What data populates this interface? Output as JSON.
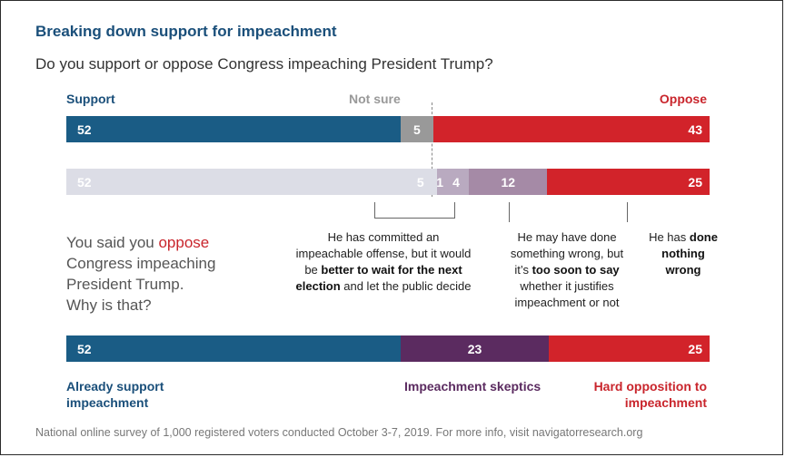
{
  "title": "Breaking down support for impeachment",
  "subtitle": "Do you support or oppose Congress impeaching President Trump?",
  "colors": {
    "support": "#1a5c85",
    "not_sure": "#999999",
    "oppose": "#d2232a",
    "faded": "#dcdde6",
    "mid1": "#b9aac0",
    "mid2": "#a58aa6",
    "skeptic": "#5b2b60"
  },
  "header_labels": {
    "support": "Support",
    "not_sure": "Not sure",
    "oppose": "Oppose"
  },
  "chart_data": [
    {
      "type": "bar",
      "orientation": "horizontal-stacked",
      "categories": [
        "Support",
        "Not sure",
        "Oppose"
      ],
      "values": [
        52,
        5,
        43
      ]
    },
    {
      "type": "bar",
      "orientation": "horizontal-stacked",
      "categories": [
        "Support",
        "Not sure",
        "Oppose: better to wait for the next election",
        "Oppose: better to wait for the next election",
        "Oppose: too soon to say",
        "Oppose: done nothing wrong"
      ],
      "values": [
        52,
        5,
        1,
        4,
        12,
        25
      ]
    },
    {
      "type": "bar",
      "orientation": "horizontal-stacked",
      "categories": [
        "Already support impeachment",
        "Impeachment skeptics",
        "Hard opposition to impeachment"
      ],
      "values": [
        52,
        23,
        25
      ]
    }
  ],
  "bar1_labels": [
    "52",
    "5",
    "43"
  ],
  "bar2_labels": [
    "52",
    "5",
    "1",
    "4",
    "12",
    "25"
  ],
  "bar3_labels": [
    "52",
    "23",
    "25"
  ],
  "prompt": {
    "line1_a": "You said you ",
    "line1_b": "oppose",
    "line2": "Congress impeaching",
    "line3": "President Trump.",
    "line4": "Why is that?"
  },
  "reasons": {
    "wait": {
      "a": "He has committed an",
      "b": "impeachable offense, but it would",
      "c": "be ",
      "d": "better to wait for the next",
      "e": "election",
      "f": " and let the public decide"
    },
    "soon": {
      "a": "He may have done",
      "b": "something wrong, but",
      "c": "it’s ",
      "d": "too soon to say",
      "e": "whether it justifies",
      "f": "impeachment or not"
    },
    "nothing": {
      "a": "He has ",
      "b": "done",
      "c": "nothing",
      "d": "wrong"
    }
  },
  "bottom_labels": {
    "support_1": "Already support",
    "support_2": "impeachment",
    "skeptics": "Impeachment skeptics",
    "hard_1": "Hard opposition to",
    "hard_2": "impeachment"
  },
  "footer": "National online survey of 1,000 registered voters conducted October 3-7, 2019. For more info, visit navigatorresearch.org"
}
